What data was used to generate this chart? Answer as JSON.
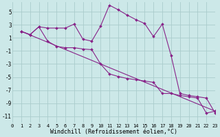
{
  "background_color": "#cce8e8",
  "grid_color": "#aacccc",
  "line_color": "#882288",
  "marker_color": "#882288",
  "xlim": [
    0,
    23
  ],
  "ylim": [
    -12,
    6.5
  ],
  "xlabel": "Windchill (Refroidissement éolien,°C)",
  "xlabel_fontsize": 6.0,
  "xtick_fontsize": 5.0,
  "ytick_fontsize": 5.5,
  "yticks": [
    -11,
    -9,
    -7,
    -5,
    -3,
    -1,
    1,
    3,
    5
  ],
  "xticks": [
    0,
    1,
    2,
    3,
    4,
    5,
    6,
    7,
    8,
    9,
    10,
    11,
    12,
    13,
    14,
    15,
    16,
    17,
    18,
    19,
    20,
    21,
    22,
    23
  ],
  "curve1_x": [
    1,
    2,
    3,
    4,
    5,
    6,
    7,
    8,
    9,
    10,
    11,
    12,
    13,
    14,
    15,
    16,
    17,
    18,
    19,
    20,
    21,
    22,
    23
  ],
  "curve1_y": [
    2.0,
    1.5,
    2.7,
    2.5,
    2.5,
    2.5,
    3.1,
    0.8,
    0.5,
    2.8,
    6.0,
    5.3,
    4.5,
    3.8,
    3.2,
    1.2,
    3.1,
    -1.7,
    -7.5,
    -7.8,
    -8.0,
    -8.2,
    -10.5
  ],
  "curve2_x": [
    1,
    2,
    3,
    4,
    5,
    6,
    7,
    8,
    9,
    10,
    11,
    12,
    13,
    14,
    15,
    16,
    17,
    18,
    19,
    20,
    21,
    22,
    23
  ],
  "curve2_y": [
    2.0,
    1.5,
    2.7,
    0.5,
    -0.3,
    -0.5,
    -0.5,
    -0.7,
    -0.8,
    -3.0,
    -4.5,
    -4.9,
    -5.2,
    -5.4,
    -5.6,
    -5.8,
    -7.5,
    -7.5,
    -7.8,
    -8.0,
    -8.2,
    -10.5,
    -10.2
  ],
  "curve3_x": [
    1,
    23
  ],
  "curve3_y": [
    2.0,
    -10.2
  ]
}
